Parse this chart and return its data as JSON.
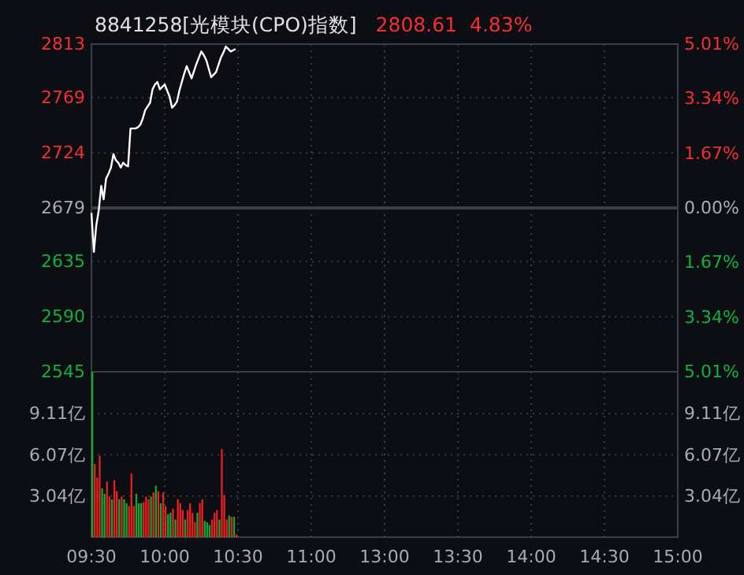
{
  "chart_data": [
    {
      "type": "line",
      "title": "8841258[光模块(CPO)指数]",
      "annotations": [
        "2808.61",
        "4.83%"
      ],
      "categories": [
        null,
        null,
        null,
        null,
        null,
        null,
        null,
        null,
        null,
        null,
        null,
        null,
        null,
        null,
        null,
        null,
        null,
        null,
        null,
        null,
        null,
        null,
        null,
        null,
        null,
        null,
        null,
        null,
        null,
        null,
        null,
        null,
        null,
        null,
        null,
        null,
        null,
        null,
        null,
        null,
        null,
        null,
        null,
        null,
        null,
        null,
        null,
        null,
        null,
        null,
        null,
        null,
        null,
        null,
        null,
        null,
        null,
        null,
        null,
        null,
        null,
        null,
        null,
        null,
        null,
        null,
        null,
        null,
        null,
        null,
        null,
        null,
        null,
        null,
        null,
        null,
        null,
        null,
        null,
        null,
        null,
        null,
        null,
        null,
        null,
        null,
        null,
        null,
        null,
        null,
        null,
        null,
        null,
        null,
        null,
        null,
        null,
        null,
        null,
        null,
        null,
        null,
        null,
        null,
        null,
        null,
        null,
        null,
        null,
        null,
        null,
        null,
        null,
        null,
        null,
        null,
        null,
        null,
        null,
        null,
        null,
        null,
        null,
        null,
        null,
        null,
        null,
        null,
        null,
        null,
        null,
        null,
        null,
        null,
        null,
        null,
        null,
        null,
        null,
        null,
        null,
        null,
        null,
        null,
        null,
        null,
        null,
        null,
        null,
        null,
        null,
        null,
        null,
        null,
        null,
        null,
        null,
        null,
        null,
        null,
        null,
        null,
        null,
        null,
        null,
        null,
        null,
        null,
        null,
        null,
        null,
        null,
        null,
        null,
        null,
        null,
        null,
        null,
        null,
        null,
        null,
        null,
        null,
        null,
        null,
        null,
        null,
        null,
        null,
        null,
        null,
        null,
        null,
        null,
        null,
        null,
        null,
        null,
        null,
        null,
        null,
        null,
        null,
        null,
        null,
        null,
        null,
        null,
        null,
        null,
        null,
        null,
        null,
        null,
        null,
        null,
        null,
        null,
        null,
        null,
        null,
        null,
        null,
        null,
        null,
        null,
        null,
        null,
        null,
        null,
        null,
        null,
        null,
        null,
        null,
        null,
        null,
        null,
        null,
        null,
        null
      ],
      "ylim": [
        2545,
        2813
      ],
      "yticks": [
        2545,
        2590,
        2635,
        2679,
        2724,
        2769,
        2813
      ],
      "y2lim": [
        -5.01,
        5.01
      ],
      "y2ticks": [
        {
          "value": -5.01,
          "label": "5.01%"
        },
        {
          "value": -3.34,
          "label": "3.34%"
        },
        {
          "value": -1.67,
          "label": "1.67%"
        },
        {
          "value": 0,
          "label": "0.00%"
        },
        {
          "value": 1.67,
          "label": "1.67%"
        },
        {
          "value": 3.34,
          "label": "3.34%"
        },
        {
          "value": 5.01,
          "label": "5.01%"
        }
      ],
      "grid": true,
      "tick_labels": "y",
      "ref_lines": [
        {
          "axis": "y",
          "value": 2679,
          "color": "#3c3f44"
        }
      ],
      "series": [
        {
          "color": "#ffffff",
          "values": [
            2675,
            2643,
            2665,
            2677,
            2697,
            2686,
            2703,
            2707,
            2712,
            2723,
            2718,
            2716,
            2712,
            2716,
            2714,
            2713,
            2744,
            2744,
            2744,
            2745,
            2747,
            2752,
            2759,
            2762,
            2765,
            2776,
            2780,
            2782,
            2776,
            2778,
            2780,
            2775,
            2770,
            2761,
            2763,
            2766,
            2775,
            2782,
            2789,
            2795,
            2790,
            2785,
            2791,
            2797,
            2802,
            2807,
            2804,
            2800,
            2793,
            2786,
            2788,
            2790,
            2796,
            2802,
            2806,
            2811,
            2809,
            2807,
            2808,
            2809,
            null,
            null,
            null,
            null,
            null,
            null,
            null,
            null,
            null,
            null,
            null,
            null,
            null,
            null,
            null,
            null,
            null,
            null,
            null,
            null,
            null,
            null,
            null,
            null,
            null,
            null,
            null,
            null,
            null,
            null,
            null,
            null,
            null,
            null,
            null,
            null,
            null,
            null,
            null,
            null,
            null,
            null,
            null,
            null,
            null,
            null,
            null,
            null,
            null,
            null,
            null,
            null,
            null,
            null,
            null,
            null,
            null,
            null,
            null,
            null,
            null,
            null,
            null,
            null,
            null,
            null,
            null,
            null,
            null,
            null,
            null,
            null,
            null,
            null,
            null,
            null,
            null,
            null,
            null,
            null,
            null,
            null,
            null,
            null,
            null,
            null,
            null,
            null,
            null,
            null,
            null,
            null,
            null,
            null,
            null,
            null,
            null,
            null,
            null,
            null,
            null,
            null,
            null,
            null,
            null,
            null,
            null,
            null,
            null,
            null,
            null,
            null,
            null,
            null,
            null,
            null,
            null,
            null,
            null,
            null,
            null,
            null,
            null,
            null,
            null,
            null,
            null,
            null,
            null,
            null,
            null,
            null,
            null,
            null,
            null,
            null,
            null,
            null,
            null,
            null,
            null,
            null,
            null,
            null,
            null,
            null,
            null,
            null,
            null,
            null,
            null,
            null,
            null,
            null,
            null,
            null,
            null,
            null,
            null,
            null,
            null,
            null,
            null,
            null,
            null,
            null,
            null,
            null,
            null,
            null,
            null,
            null,
            null,
            null,
            null,
            null,
            null,
            null,
            null,
            null,
            null
          ]
        }
      ]
    },
    {
      "type": "bar",
      "categories": [
        "09:30",
        null,
        null,
        null,
        null,
        null,
        null,
        null,
        null,
        null,
        null,
        null,
        null,
        null,
        null,
        null,
        null,
        null,
        null,
        null,
        null,
        null,
        null,
        null,
        null,
        null,
        null,
        null,
        null,
        null,
        "10:00",
        null,
        null,
        null,
        null,
        null,
        null,
        null,
        null,
        null,
        null,
        null,
        null,
        null,
        null,
        null,
        null,
        null,
        null,
        null,
        null,
        null,
        null,
        null,
        null,
        null,
        null,
        null,
        null,
        null,
        "10:30",
        null,
        null,
        null,
        null,
        null,
        null,
        null,
        null,
        null,
        null,
        null,
        null,
        null,
        null,
        null,
        null,
        null,
        null,
        null,
        null,
        null,
        null,
        null,
        null,
        null,
        null,
        null,
        null,
        null,
        "11:00",
        null,
        null,
        null,
        null,
        null,
        null,
        null,
        null,
        null,
        null,
        null,
        null,
        null,
        null,
        null,
        null,
        null,
        null,
        null,
        null,
        null,
        null,
        null,
        null,
        null,
        null,
        null,
        null,
        null,
        "13:00",
        null,
        null,
        null,
        null,
        null,
        null,
        null,
        null,
        null,
        null,
        null,
        null,
        null,
        null,
        null,
        null,
        null,
        null,
        null,
        null,
        null,
        null,
        null,
        null,
        null,
        null,
        null,
        null,
        null,
        "13:30",
        null,
        null,
        null,
        null,
        null,
        null,
        null,
        null,
        null,
        null,
        null,
        null,
        null,
        null,
        null,
        null,
        null,
        null,
        null,
        null,
        null,
        null,
        null,
        null,
        null,
        null,
        null,
        null,
        null,
        "14:00",
        null,
        null,
        null,
        null,
        null,
        null,
        null,
        null,
        null,
        null,
        null,
        null,
        null,
        null,
        null,
        null,
        null,
        null,
        null,
        null,
        null,
        null,
        null,
        null,
        null,
        null,
        null,
        null,
        null,
        "14:30",
        null,
        null,
        null,
        null,
        null,
        null,
        null,
        null,
        null,
        null,
        null,
        null,
        null,
        null,
        null,
        null,
        null,
        null,
        null,
        null,
        null,
        null,
        null,
        null,
        null,
        null,
        null,
        null,
        null,
        "15:00"
      ],
      "ylim": [
        0,
        12.2
      ],
      "yticks": [
        {
          "value": 3.04,
          "label": "3.04亿"
        },
        {
          "value": 6.07,
          "label": "6.07亿"
        },
        {
          "value": 9.11,
          "label": "9.11亿"
        }
      ],
      "y2lim": [
        0,
        12.2
      ],
      "y2ticks": [
        {
          "value": 3.04,
          "label": "3.04亿"
        },
        {
          "value": 6.07,
          "label": "6.07亿"
        },
        {
          "value": 9.11,
          "label": "9.11亿"
        }
      ],
      "grid": true,
      "values": [
        12.2,
        5.4,
        4.4,
        6.0,
        3.6,
        3.2,
        4.1,
        3.0,
        2.8,
        4.2,
        3.4,
        2.8,
        3.0,
        2.8,
        2.5,
        2.3,
        4.7,
        2.3,
        3.2,
        2.5,
        2.5,
        2.6,
        3.0,
        2.8,
        3.0,
        3.3,
        3.8,
        3.4,
        2.5,
        3.3,
        2.3,
        1.7,
        1.8,
        2.1,
        1.3,
        2.8,
        2.5,
        2.0,
        1.3,
        2.0,
        2.5,
        1.8,
        1.1,
        1.8,
        2.5,
        2.8,
        1.2,
        1.1,
        0.9,
        1.3,
        1.8,
        2.0,
        1.3,
        6.5,
        3.1,
        1.3,
        1.6,
        1.5,
        1.5,
        0.2,
        null,
        null,
        null,
        null,
        null,
        null,
        null,
        null,
        null,
        null,
        null,
        null,
        null,
        null,
        null,
        null,
        null,
        null,
        null,
        null,
        null,
        null,
        null,
        null,
        null,
        null,
        null,
        null,
        null,
        null,
        null,
        null,
        null,
        null,
        null,
        null,
        null,
        null,
        null,
        null,
        null,
        null,
        null,
        null,
        null,
        null,
        null,
        null,
        null,
        null,
        null,
        null,
        null,
        null,
        null,
        null,
        null,
        null,
        null,
        null,
        null,
        null,
        null,
        null,
        null,
        null,
        null,
        null,
        null,
        null,
        null,
        null,
        null,
        null,
        null,
        null,
        null,
        null,
        null,
        null,
        null,
        null,
        null,
        null,
        null,
        null,
        null,
        null,
        null,
        null,
        null,
        null,
        null,
        null,
        null,
        null,
        null,
        null,
        null,
        null,
        null,
        null,
        null,
        null,
        null,
        null,
        null,
        null,
        null,
        null,
        null,
        null,
        null,
        null,
        null,
        null,
        null,
        null,
        null,
        null,
        null,
        null,
        null,
        null,
        null,
        null,
        null,
        null,
        null,
        null,
        null,
        null,
        null,
        null,
        null,
        null,
        null,
        null,
        null,
        null,
        null,
        null,
        null,
        null,
        null,
        null,
        null,
        null,
        null,
        null,
        null,
        null,
        null,
        null,
        null,
        null,
        null,
        null,
        null,
        null,
        null,
        null,
        null,
        null,
        null,
        null,
        null,
        null,
        null,
        null,
        null,
        null,
        null,
        null,
        null,
        null,
        null,
        null,
        null,
        null,
        null
      ],
      "colors": [
        "#13a538",
        "#e8201e",
        "#e8201e",
        "#e8201e",
        "#13a538",
        "#13a538",
        "#e8201e",
        "#e8201e",
        "#13a538",
        "#e8201e",
        "#e8201e",
        "#13a538",
        "#e8201e",
        "#13a538",
        "#13a538",
        "#e8201e",
        "#e8201e",
        "#e8201e",
        "#13a538",
        "#13a538",
        "#13a538",
        "#e8201e",
        "#e8201e",
        "#e8201e",
        "#13a538",
        "#e8201e",
        "#13a538",
        "#e8201e",
        "#13a538",
        "#e8201e",
        "#e8201e",
        "#13a538",
        "#13a538",
        "#e8201e",
        "#13a538",
        "#e8201e",
        "#e8201e",
        "#e8201e",
        "#13a538",
        "#e8201e",
        "#e8201e",
        "#e8201e",
        "#e8201e",
        "#13a538",
        "#e8201e",
        "#e8201e",
        "#13a538",
        "#13a538",
        "#13a538",
        "#e8201e",
        "#e8201e",
        "#e8201e",
        "#13a538",
        "#e8201e",
        "#e8201e",
        "#e8201e",
        "#13a538",
        "#e8201e",
        "#13a538",
        "#e8201e",
        null,
        null,
        null,
        null,
        null,
        null,
        null,
        null,
        null,
        null,
        null,
        null,
        null,
        null,
        null,
        null,
        null,
        null,
        null,
        null,
        null,
        null,
        null,
        null,
        null,
        null,
        null,
        null,
        null,
        null,
        null,
        null,
        null,
        null,
        null,
        null,
        null,
        null,
        null,
        null,
        null,
        null,
        null,
        null,
        null,
        null,
        null,
        null,
        null,
        null,
        null,
        null,
        null,
        null,
        null,
        null,
        null,
        null,
        null,
        null,
        null,
        null,
        null,
        null,
        null,
        null,
        null,
        null,
        null,
        null,
        null,
        null,
        null,
        null,
        null,
        null,
        null,
        null,
        null,
        null,
        null,
        null,
        null,
        null,
        null,
        null,
        null,
        null,
        null,
        null,
        null,
        null,
        null,
        null,
        null,
        null,
        null,
        null,
        null,
        null,
        null,
        null,
        null,
        null,
        null,
        null,
        null,
        null,
        null,
        null,
        null,
        null,
        null,
        null,
        null,
        null,
        null,
        null,
        null,
        null,
        null,
        null,
        null,
        null,
        null,
        null,
        null,
        null,
        null,
        null,
        null,
        null,
        null,
        null,
        null,
        null,
        null,
        null,
        null,
        null,
        null,
        null,
        null,
        null,
        null,
        null,
        null,
        null,
        null,
        null,
        null,
        null,
        null,
        null,
        null,
        null,
        null,
        null,
        null,
        null,
        null,
        null,
        null,
        null,
        null,
        null,
        null,
        null,
        null,
        null,
        null,
        null,
        null,
        null,
        null,
        null,
        null,
        null,
        null,
        null,
        null
      ]
    }
  ]
}
